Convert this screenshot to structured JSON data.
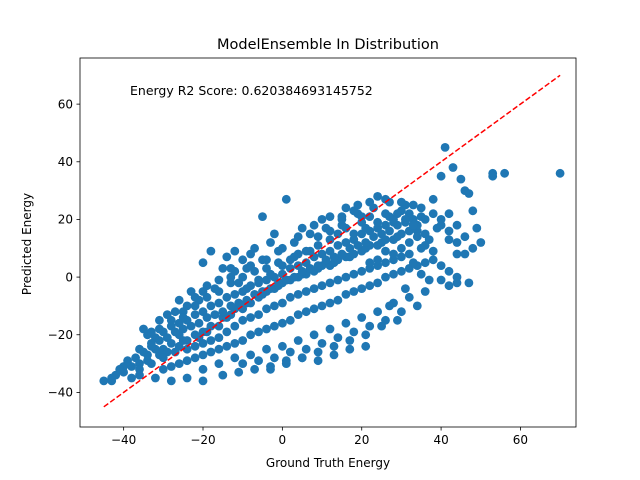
{
  "chart_data": {
    "type": "scatter",
    "title": "ModelEnsemble In Distribution",
    "xlabel": "Ground Truth Energy",
    "ylabel": "Predicted Energy",
    "annotation": "Energy R2 Score: 0.620384693145752",
    "xlim": [
      -51,
      74
    ],
    "ylim": [
      -52,
      76
    ],
    "x_ticks": [
      -40,
      -20,
      0,
      20,
      40,
      60
    ],
    "y_ticks": [
      -40,
      -20,
      0,
      20,
      40,
      60
    ],
    "grid": false,
    "colors": {
      "points": "#1f77b4",
      "reference_line": "#ff0000",
      "axes": "#000000"
    },
    "reference_line": {
      "from": [
        -45,
        -45
      ],
      "to": [
        70,
        70
      ],
      "style": "dashed"
    },
    "points": [
      [
        -45,
        -36
      ],
      [
        -43,
        -35
      ],
      [
        -42,
        -34
      ],
      [
        -40,
        -33
      ],
      [
        -40,
        -31
      ],
      [
        -38,
        -31
      ],
      [
        -36,
        -30
      ],
      [
        -34,
        -29
      ],
      [
        -33,
        -30
      ],
      [
        -31,
        -27
      ],
      [
        -30,
        -25
      ],
      [
        -29,
        -26
      ],
      [
        -27,
        -26
      ],
      [
        -26,
        -24
      ],
      [
        -25,
        -22
      ],
      [
        -24,
        -22
      ],
      [
        -22,
        -20
      ],
      [
        -21,
        -21
      ],
      [
        -20,
        -19
      ],
      [
        -19,
        -19
      ],
      [
        -18,
        -17
      ],
      [
        -16,
        -17
      ],
      [
        -15,
        -14
      ],
      [
        -14,
        -14
      ],
      [
        -13,
        -13
      ],
      [
        -12,
        -11
      ],
      [
        -10,
        -11
      ],
      [
        -9,
        -9
      ],
      [
        -8,
        -9
      ],
      [
        -6,
        -7
      ],
      [
        -5,
        -6
      ],
      [
        -4,
        -5
      ],
      [
        -2,
        -4
      ],
      [
        -1,
        -3
      ],
      [
        0,
        -2
      ],
      [
        1,
        -1
      ],
      [
        2,
        -1
      ],
      [
        4,
        0
      ],
      [
        5,
        1
      ],
      [
        6,
        1
      ],
      [
        8,
        2
      ],
      [
        9,
        3
      ],
      [
        10,
        4
      ],
      [
        12,
        4
      ],
      [
        13,
        5
      ],
      [
        14,
        6
      ],
      [
        16,
        7
      ],
      [
        17,
        7
      ],
      [
        18,
        8
      ],
      [
        20,
        9
      ],
      [
        21,
        10
      ],
      [
        22,
        11
      ],
      [
        24,
        11
      ],
      [
        25,
        12
      ],
      [
        26,
        13
      ],
      [
        28,
        13
      ],
      [
        29,
        14
      ],
      [
        30,
        15
      ],
      [
        32,
        16
      ],
      [
        34,
        16
      ],
      [
        -38,
        -35
      ],
      [
        -36,
        -32
      ],
      [
        -34,
        -27
      ],
      [
        -32,
        -25
      ],
      [
        -30,
        -28
      ],
      [
        -28,
        -23
      ],
      [
        -26,
        -20
      ],
      [
        -24,
        -25
      ],
      [
        -22,
        -24
      ],
      [
        -20,
        -23
      ],
      [
        -18,
        -22
      ],
      [
        -16,
        -21
      ],
      [
        -14,
        -19
      ],
      [
        -12,
        -17
      ],
      [
        -10,
        -15
      ],
      [
        -8,
        -14
      ],
      [
        -6,
        -13
      ],
      [
        -4,
        -11
      ],
      [
        -2,
        -10
      ],
      [
        0,
        -9
      ],
      [
        2,
        -7
      ],
      [
        4,
        -6
      ],
      [
        6,
        -5
      ],
      [
        8,
        -4
      ],
      [
        10,
        -3
      ],
      [
        12,
        -2
      ],
      [
        14,
        -1
      ],
      [
        16,
        0
      ],
      [
        18,
        1
      ],
      [
        20,
        2
      ],
      [
        22,
        3
      ],
      [
        24,
        4
      ],
      [
        26,
        5
      ],
      [
        28,
        6
      ],
      [
        30,
        7
      ],
      [
        32,
        8
      ],
      [
        -34,
        -20
      ],
      [
        -32,
        -21
      ],
      [
        -30,
        -19
      ],
      [
        -28,
        -17
      ],
      [
        -26,
        -16
      ],
      [
        -24,
        -15
      ],
      [
        -22,
        -13
      ],
      [
        -20,
        -12
      ],
      [
        -18,
        -10
      ],
      [
        -16,
        -9
      ],
      [
        -14,
        -7
      ],
      [
        -12,
        -6
      ],
      [
        -10,
        -5
      ],
      [
        -8,
        -3
      ],
      [
        -6,
        -2
      ],
      [
        -4,
        -1
      ],
      [
        -2,
        0
      ],
      [
        0,
        1
      ],
      [
        2,
        3
      ],
      [
        4,
        4
      ],
      [
        6,
        5
      ],
      [
        8,
        7
      ],
      [
        10,
        8
      ],
      [
        12,
        9
      ],
      [
        14,
        11
      ],
      [
        16,
        12
      ],
      [
        18,
        13
      ],
      [
        20,
        15
      ],
      [
        22,
        16
      ],
      [
        24,
        17
      ],
      [
        26,
        18
      ],
      [
        28,
        19
      ],
      [
        -30,
        -32
      ],
      [
        -28,
        -31
      ],
      [
        -26,
        -30
      ],
      [
        -24,
        -29
      ],
      [
        -22,
        -28
      ],
      [
        -20,
        -27
      ],
      [
        -18,
        -26
      ],
      [
        -16,
        -25
      ],
      [
        -14,
        -24
      ],
      [
        -12,
        -23
      ],
      [
        -10,
        -22
      ],
      [
        -8,
        -20
      ],
      [
        -6,
        -19
      ],
      [
        -4,
        -18
      ],
      [
        -2,
        -17
      ],
      [
        0,
        -16
      ],
      [
        2,
        -15
      ],
      [
        4,
        -13
      ],
      [
        6,
        -12
      ],
      [
        8,
        -11
      ],
      [
        10,
        -10
      ],
      [
        12,
        -9
      ],
      [
        14,
        -8
      ],
      [
        16,
        -6
      ],
      [
        18,
        -5
      ],
      [
        20,
        -4
      ],
      [
        22,
        -3
      ],
      [
        24,
        -2
      ],
      [
        26,
        0
      ],
      [
        28,
        1
      ],
      [
        30,
        2
      ],
      [
        32,
        3
      ],
      [
        34,
        4
      ],
      [
        36,
        5
      ],
      [
        -37,
        -28
      ],
      [
        -35,
        -26
      ],
      [
        -33,
        -24
      ],
      [
        -31,
        -22
      ],
      [
        -29,
        -21
      ],
      [
        -27,
        -19
      ],
      [
        -25,
        -18
      ],
      [
        -23,
        -17
      ],
      [
        -21,
        -16
      ],
      [
        -19,
        -14
      ],
      [
        -17,
        -13
      ],
      [
        -15,
        -12
      ],
      [
        -13,
        -10
      ],
      [
        -11,
        -9
      ],
      [
        -9,
        -8
      ],
      [
        -7,
        -6
      ],
      [
        -5,
        -5
      ],
      [
        -3,
        -4
      ],
      [
        -1,
        -2
      ],
      [
        1,
        -1
      ],
      [
        3,
        0
      ],
      [
        5,
        2
      ],
      [
        7,
        3
      ],
      [
        9,
        4
      ],
      [
        11,
        6
      ],
      [
        13,
        7
      ],
      [
        15,
        8
      ],
      [
        17,
        10
      ],
      [
        19,
        11
      ],
      [
        21,
        12
      ],
      [
        23,
        14
      ],
      [
        25,
        15
      ],
      [
        27,
        16
      ],
      [
        29,
        18
      ],
      [
        31,
        19
      ],
      [
        33,
        20
      ],
      [
        35,
        21
      ],
      [
        -25,
        -12
      ],
      [
        -21,
        -8
      ],
      [
        -17,
        -4
      ],
      [
        -13,
        0
      ],
      [
        -9,
        3
      ],
      [
        -5,
        6
      ],
      [
        -1,
        9
      ],
      [
        3,
        12
      ],
      [
        7,
        15
      ],
      [
        11,
        17
      ],
      [
        15,
        20
      ],
      [
        19,
        22
      ],
      [
        23,
        24
      ],
      [
        27,
        26
      ],
      [
        31,
        25
      ],
      [
        35,
        24
      ],
      [
        -20,
        -32
      ],
      [
        -16,
        -30
      ],
      [
        -12,
        -28
      ],
      [
        -8,
        -27
      ],
      [
        -4,
        -25
      ],
      [
        0,
        -24
      ],
      [
        4,
        -22
      ],
      [
        8,
        -20
      ],
      [
        12,
        -18
      ],
      [
        16,
        -16
      ],
      [
        20,
        -14
      ],
      [
        24,
        -12
      ],
      [
        28,
        -9
      ],
      [
        32,
        -7
      ],
      [
        36,
        -5
      ],
      [
        -10,
        6
      ],
      [
        -7,
        10
      ],
      [
        -12,
        9
      ],
      [
        -18,
        9
      ],
      [
        -14,
        7
      ],
      [
        -5,
        21
      ],
      [
        1,
        27
      ],
      [
        -3,
        12
      ],
      [
        -8,
        4
      ],
      [
        -2,
        15
      ],
      [
        5,
        17
      ],
      [
        10,
        20
      ],
      [
        15,
        21
      ],
      [
        18,
        23
      ],
      [
        20,
        19
      ],
      [
        24,
        28
      ],
      [
        26,
        27
      ],
      [
        30,
        26
      ],
      [
        33,
        25
      ],
      [
        38,
        27
      ],
      [
        40,
        20
      ],
      [
        42,
        22
      ],
      [
        40,
        35
      ],
      [
        41,
        45
      ],
      [
        43,
        38
      ],
      [
        45,
        34
      ],
      [
        46,
        30
      ],
      [
        47,
        29
      ],
      [
        44,
        18
      ],
      [
        46,
        14
      ],
      [
        48,
        23
      ],
      [
        49,
        17
      ],
      [
        53,
        36
      ],
      [
        53,
        35
      ],
      [
        56,
        36
      ],
      [
        70,
        36
      ],
      [
        48,
        10
      ],
      [
        50,
        12
      ],
      [
        44,
        8
      ],
      [
        42,
        13
      ],
      [
        39,
        17
      ],
      [
        37,
        13
      ],
      [
        35,
        10
      ],
      [
        33,
        5
      ],
      [
        35,
        1
      ],
      [
        37,
        -1
      ],
      [
        40,
        -1
      ],
      [
        42,
        -3
      ],
      [
        44,
        -2
      ],
      [
        47,
        -2
      ],
      [
        38,
        9
      ],
      [
        36,
        15
      ],
      [
        34,
        18
      ],
      [
        32,
        22
      ],
      [
        30,
        23
      ],
      [
        28,
        20
      ],
      [
        26,
        22
      ],
      [
        22,
        21
      ],
      [
        20,
        21
      ],
      [
        16,
        17
      ],
      [
        14,
        15
      ],
      [
        12,
        13
      ],
      [
        9,
        11
      ],
      [
        7,
        9
      ],
      [
        4,
        8
      ],
      [
        2,
        6
      ],
      [
        -1,
        5
      ],
      [
        -4,
        3
      ],
      [
        -7,
        2
      ],
      [
        -10,
        0
      ],
      [
        -13,
        -2
      ],
      [
        -16,
        -5
      ],
      [
        -19,
        -7
      ],
      [
        -22,
        -10
      ],
      [
        -25,
        -14
      ],
      [
        -28,
        -15
      ],
      [
        -31,
        -18
      ],
      [
        -33,
        -23
      ],
      [
        -36,
        -25
      ],
      [
        -39,
        -29
      ],
      [
        -41,
        -32
      ],
      [
        -43,
        -36
      ],
      [
        -10,
        -30
      ],
      [
        -6,
        -29
      ],
      [
        -2,
        -28
      ],
      [
        2,
        -26
      ],
      [
        6,
        -25
      ],
      [
        10,
        -23
      ],
      [
        14,
        -21
      ],
      [
        18,
        -19
      ],
      [
        22,
        -17
      ],
      [
        26,
        -15
      ],
      [
        30,
        -12
      ],
      [
        34,
        -10
      ],
      [
        -3,
        -32
      ],
      [
        1,
        -29
      ],
      [
        5,
        -28
      ],
      [
        9,
        -26
      ],
      [
        13,
        -24
      ],
      [
        17,
        -22
      ],
      [
        21,
        -20
      ],
      [
        25,
        -17
      ],
      [
        29,
        -15
      ],
      [
        27,
        -10
      ],
      [
        31,
        -4
      ],
      [
        -20,
        -36
      ],
      [
        -24,
        -35
      ],
      [
        -28,
        -36
      ],
      [
        -32,
        -35
      ],
      [
        -36,
        -34
      ],
      [
        -15,
        -34
      ],
      [
        -11,
        -33
      ],
      [
        -7,
        -32
      ],
      [
        -3,
        -31
      ],
      [
        1,
        -30
      ],
      [
        5,
        -28
      ],
      [
        9,
        -29
      ],
      [
        13,
        -27
      ],
      [
        17,
        -25
      ],
      [
        21,
        -24
      ],
      [
        -20,
        5
      ],
      [
        -15,
        3
      ],
      [
        -12,
        2
      ],
      [
        -8,
        8
      ],
      [
        -4,
        6
      ],
      [
        0,
        10
      ],
      [
        4,
        14
      ],
      [
        8,
        18
      ],
      [
        12,
        21
      ],
      [
        16,
        24
      ],
      [
        19,
        25
      ],
      [
        22,
        26
      ],
      [
        -26,
        -8
      ],
      [
        -23,
        -5
      ],
      [
        -19,
        -3
      ],
      [
        -16,
        -1
      ],
      [
        -13,
        3
      ],
      [
        -11,
        -2
      ],
      [
        -9,
        -4
      ],
      [
        -6,
        -1
      ],
      [
        -3,
        1
      ],
      [
        0,
        4
      ],
      [
        3,
        7
      ],
      [
        6,
        9
      ],
      [
        9,
        14
      ],
      [
        12,
        16
      ],
      [
        15,
        18
      ],
      [
        18,
        15
      ],
      [
        21,
        17
      ],
      [
        24,
        19
      ],
      [
        27,
        21
      ],
      [
        29,
        22
      ],
      [
        31,
        20
      ],
      [
        33,
        18
      ],
      [
        36,
        20
      ],
      [
        38,
        22
      ],
      [
        40,
        18
      ],
      [
        42,
        16
      ],
      [
        44,
        12
      ],
      [
        46,
        8
      ],
      [
        32,
        12
      ],
      [
        34,
        14
      ],
      [
        36,
        11
      ],
      [
        38,
        6
      ],
      [
        40,
        4
      ],
      [
        42,
        2
      ],
      [
        44,
        0
      ],
      [
        30,
        10
      ],
      [
        28,
        8
      ],
      [
        26,
        9
      ],
      [
        24,
        6
      ],
      [
        22,
        5
      ],
      [
        -35,
        -18
      ],
      [
        -33,
        -19
      ],
      [
        -31,
        -15
      ],
      [
        -29,
        -13
      ],
      [
        -27,
        -12
      ],
      [
        -24,
        -10
      ],
      [
        -22,
        -7
      ],
      [
        -20,
        -5
      ]
    ]
  }
}
